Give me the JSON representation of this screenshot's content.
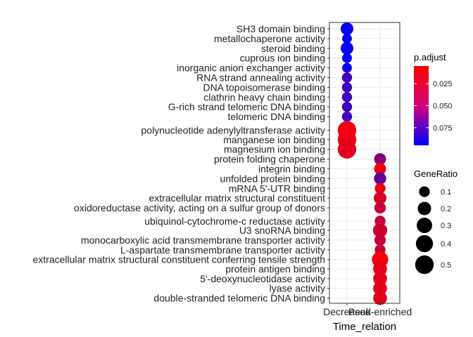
{
  "chart_data": {
    "type": "scatter",
    "title": "",
    "xlabel": "Time_relation",
    "ylabel": "",
    "x_categories": [
      "Decreased",
      "Peak-enriched"
    ],
    "y_categories": [
      "SH3 domain binding",
      "metallochaperone activity",
      "steroid binding",
      "cuprous ion binding",
      "inorganic anion exchanger activity",
      "RNA strand annealing activity",
      "DNA topoisomerase binding",
      "clathrin heavy chain binding",
      "G-rich strand telomeric DNA binding",
      "telomeric DNA binding",
      "polynucleotide adenylyltransferase activity",
      "manganese ion binding",
      "magnesium ion binding",
      "protein folding chaperone",
      "integrin binding",
      "unfolded protein binding",
      "mRNA 5'-UTR binding",
      "extracellular matrix structural constituent",
      "oxidoreductase activity, acting on a sulfur group of donors",
      "ubiquinol-cytochrome-c reductase activity",
      "U3 snoRNA binding",
      "monocarboxylic acid transmembrane transporter activity",
      "L-aspartate transmembrane transporter activity",
      "extracellular matrix structural constituent conferring tensile strength",
      "protein antigen binding",
      "5'-deoxynucleotidase activity",
      "lyase activity",
      "double-stranded telomeric DNA binding"
    ],
    "y_positions": [
      0,
      1,
      2,
      3,
      4,
      5,
      6,
      7,
      8,
      9,
      10.4,
      11.35,
      12.35,
      13.35,
      14.35,
      15.35,
      16.35,
      17.35,
      18.35,
      19.7,
      20.65,
      21.65,
      22.65,
      23.65,
      24.6,
      25.6,
      26.6,
      27.6
    ],
    "points": [
      {
        "x": "Decreased",
        "y": "SH3 domain binding",
        "gene_ratio": 0.17,
        "p_adjust": 0.092
      },
      {
        "x": "Decreased",
        "y": "metallochaperone activity",
        "gene_ratio": 0.07,
        "p_adjust": 0.092
      },
      {
        "x": "Decreased",
        "y": "steroid binding",
        "gene_ratio": 0.17,
        "p_adjust": 0.092
      },
      {
        "x": "Decreased",
        "y": "cuprous ion binding",
        "gene_ratio": 0.07,
        "p_adjust": 0.092
      },
      {
        "x": "Decreased",
        "y": "inorganic anion exchanger activity",
        "gene_ratio": 0.07,
        "p_adjust": 0.09
      },
      {
        "x": "Decreased",
        "y": "RNA strand annealing activity",
        "gene_ratio": 0.08,
        "p_adjust": 0.072
      },
      {
        "x": "Decreased",
        "y": "DNA topoisomerase binding",
        "gene_ratio": 0.08,
        "p_adjust": 0.072
      },
      {
        "x": "Decreased",
        "y": "clathrin heavy chain binding",
        "gene_ratio": 0.08,
        "p_adjust": 0.072
      },
      {
        "x": "Decreased",
        "y": "G-rich strand telomeric DNA binding",
        "gene_ratio": 0.08,
        "p_adjust": 0.072
      },
      {
        "x": "Decreased",
        "y": "telomeric DNA binding",
        "gene_ratio": 0.08,
        "p_adjust": 0.072
      },
      {
        "x": "Decreased",
        "y": "polynucleotide adenylyltransferase activity",
        "gene_ratio": 0.5,
        "p_adjust": 0.01
      },
      {
        "x": "Decreased",
        "y": "manganese ion binding",
        "gene_ratio": 0.5,
        "p_adjust": 0.012
      },
      {
        "x": "Decreased",
        "y": "magnesium ion binding",
        "gene_ratio": 0.5,
        "p_adjust": 0.015
      },
      {
        "x": "Peak-enriched",
        "y": "protein folding chaperone",
        "gene_ratio": 0.14,
        "p_adjust": 0.047
      },
      {
        "x": "Peak-enriched",
        "y": "integrin binding",
        "gene_ratio": 0.14,
        "p_adjust": 0.01
      },
      {
        "x": "Peak-enriched",
        "y": "unfolded protein binding",
        "gene_ratio": 0.15,
        "p_adjust": 0.06
      },
      {
        "x": "Peak-enriched",
        "y": "mRNA 5'-UTR binding",
        "gene_ratio": 0.1,
        "p_adjust": 0.012
      },
      {
        "x": "Peak-enriched",
        "y": "extracellular matrix structural constituent",
        "gene_ratio": 0.17,
        "p_adjust": 0.018
      },
      {
        "x": "Peak-enriched",
        "y": "oxidoreductase activity, acting on a sulfur group of donors",
        "gene_ratio": 0.12,
        "p_adjust": 0.025
      },
      {
        "x": "Peak-enriched",
        "y": "ubiquinol-cytochrome-c reductase activity",
        "gene_ratio": 0.1,
        "p_adjust": 0.025
      },
      {
        "x": "Peak-enriched",
        "y": "U3 snoRNA binding",
        "gene_ratio": 0.24,
        "p_adjust": 0.022
      },
      {
        "x": "Peak-enriched",
        "y": "monocarboxylic acid transmembrane transporter activity",
        "gene_ratio": 0.12,
        "p_adjust": 0.025
      },
      {
        "x": "Peak-enriched",
        "y": "L-aspartate transmembrane transporter activity",
        "gene_ratio": 0.1,
        "p_adjust": 0.025
      },
      {
        "x": "Peak-enriched",
        "y": "extracellular matrix structural constituent conferring tensile strength",
        "gene_ratio": 0.35,
        "p_adjust": 0.008
      },
      {
        "x": "Peak-enriched",
        "y": "protein antigen binding",
        "gene_ratio": 0.22,
        "p_adjust": 0.015
      },
      {
        "x": "Peak-enriched",
        "y": "5'-deoxynucleotidase activity",
        "gene_ratio": 0.22,
        "p_adjust": 0.015
      },
      {
        "x": "Peak-enriched",
        "y": "lyase activity",
        "gene_ratio": 0.22,
        "p_adjust": 0.015
      },
      {
        "x": "Peak-enriched",
        "y": "double-stranded telomeric DNA binding",
        "gene_ratio": 0.22,
        "p_adjust": 0.015
      }
    ],
    "color_legend": {
      "title": "p.adjust",
      "ticks": [
        0.025,
        0.05,
        0.075
      ],
      "tick_labels": [
        "0.025",
        "0.050",
        "0.075"
      ],
      "range": [
        0.005,
        0.095
      ],
      "low_color": "#FF0000",
      "high_color": "#0000FF"
    },
    "size_legend": {
      "title": "GeneRatio",
      "values": [
        0.1,
        0.2,
        0.3,
        0.4,
        0.5
      ],
      "labels": [
        "0.1",
        "0.2",
        "0.3",
        "0.4",
        "0.5"
      ]
    },
    "grid": true,
    "legend_position": "right",
    "panel_background": "#ffffff",
    "grid_color": "#ebebeb",
    "border_color": "#333333"
  }
}
